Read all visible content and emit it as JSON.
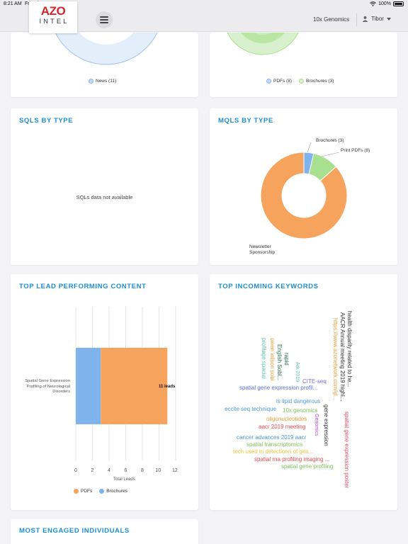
{
  "status_bar": {
    "time": "8:21 AM",
    "date": "Fri Jul 10",
    "battery": "100%"
  },
  "nav": {
    "logo_top": "AZO",
    "logo_bottom": "INTEL",
    "organization": "10x Genomics",
    "user": "Tibor"
  },
  "top_legends": {
    "left": [
      {
        "label": "News (11)",
        "color": "#8ab4e8"
      }
    ],
    "right": [
      {
        "label": "PDFs (8)",
        "color": "#8ab4e8"
      },
      {
        "label": "Brochures (3)",
        "color": "#a8e08f"
      }
    ]
  },
  "sqls": {
    "title": "SQLS BY TYPE",
    "empty_text": "SQLs data not available"
  },
  "mqls": {
    "title": "MQLS BY TYPE",
    "labels": {
      "brochures": "Brochures (3)",
      "print_pdfs": "Print PDFs (8)",
      "newsletter_1": "Newsletter",
      "newsletter_2": "Sponsorship"
    }
  },
  "top_lead": {
    "title": "TOP LEAD PERFORMING CONTENT",
    "category_line1": "Spatial Gene Expression",
    "category_line2": "Profiling of Neurological",
    "category_line3": "Disorders",
    "total_label": "11 leads",
    "x_title": "Total Leads",
    "ticks": [
      "0",
      "2",
      "4",
      "6",
      "8",
      "10",
      "12"
    ],
    "legend": [
      {
        "label": "PDFs",
        "color": "#f6a35d"
      },
      {
        "label": "Brochures",
        "color": "#7fb3ec"
      }
    ]
  },
  "keywords": {
    "title": "TOP INCOMING KEYWORDS",
    "items": [
      {
        "text": "health disparity related to he...",
        "color": "#333333"
      },
      {
        "text": "AACR Annual meeting 2019 highl...",
        "color": "#333333"
      },
      {
        "text": "https://www.azonetwork.com/gl...",
        "color": "#e8a13c"
      },
      {
        "text": "English Sobl...",
        "color": "#2a6f54"
      },
      {
        "text": "rapid",
        "color": "#2a6f54"
      },
      {
        "text": "owen wilson sobi",
        "color": "#e8a13c"
      },
      {
        "text": "profilage spacial",
        "color": "#5ec8a8"
      },
      {
        "text": "Ark 2019",
        "color": "#5ec8a8"
      },
      {
        "text": "CITE-seq",
        "color": "#7a6fd8"
      },
      {
        "text": "spatial gene expression profil...",
        "color": "#5b6fd8"
      },
      {
        "text": "ls lipid dangerous",
        "color": "#4a9ad8"
      },
      {
        "text": "eccite seq technique",
        "color": "#4a9ad8"
      },
      {
        "text": "10x genomics",
        "color": "#7cc45a"
      },
      {
        "text": "gene expression",
        "color": "#333333"
      },
      {
        "text": "Genomics",
        "color": "#b84bd8"
      },
      {
        "text": "oligonucleotides",
        "color": "#e8a13c"
      },
      {
        "text": "aacr 2019 meeting",
        "color": "#e84b4b"
      },
      {
        "text": "spatial gene expression poster",
        "color": "#e84b6f"
      },
      {
        "text": "cancer advances 2019 aacr",
        "color": "#4a9ad8"
      },
      {
        "text": "spatial transcriptomics",
        "color": "#7cc45a"
      },
      {
        "text": "tech used in detectionn of gen...",
        "color": "#e8c43c"
      },
      {
        "text": "spatial rna profiling imaging ...",
        "color": "#e84b4b"
      },
      {
        "text": "spatial gene profiling",
        "color": "#7cc45a"
      }
    ]
  },
  "engaged": {
    "title": "MOST ENGAGED INDIVIDUALS"
  },
  "chart_data": [
    {
      "type": "pie",
      "title": "MQLS BY TYPE",
      "categories": [
        "Brochures",
        "Print PDFs",
        "Newsletter Sponsorship"
      ],
      "values": [
        3,
        8,
        71
      ],
      "colors": [
        "#7fb3ec",
        "#a8e08f",
        "#f6a35d"
      ]
    },
    {
      "type": "bar",
      "orientation": "horizontal",
      "stacked": true,
      "title": "TOP LEAD PERFORMING CONTENT",
      "categories": [
        "Spatial Gene Expression Profiling of Neurological Disorders"
      ],
      "series": [
        {
          "name": "Brochures",
          "values": [
            3
          ],
          "color": "#7fb3ec"
        },
        {
          "name": "PDFs",
          "values": [
            8
          ],
          "color": "#f6a35d"
        }
      ],
      "xlabel": "Total Leads",
      "xlim": [
        0,
        12
      ],
      "grid": true,
      "legend": "bottom"
    }
  ]
}
